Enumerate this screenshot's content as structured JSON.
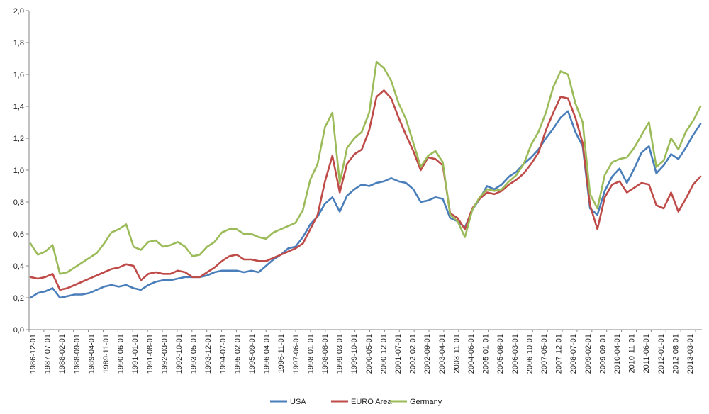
{
  "chart_data": {
    "type": "line",
    "title": "",
    "xlabel": "",
    "ylabel": "",
    "ylim": [
      0,
      2
    ],
    "yticks": [
      "0,0",
      "0,2",
      "0,4",
      "0,6",
      "0,8",
      "1,0",
      "1,2",
      "1,4",
      "1,6",
      "1,8",
      "2,0"
    ],
    "ytick_values": [
      0,
      0.2,
      0.4,
      0.6,
      0.8,
      1.0,
      1.2,
      1.4,
      1.6,
      1.8,
      2.0
    ],
    "xticks": [
      "1986-12-01",
      "1987-07-01",
      "1988-02-01",
      "1988-09-01",
      "1989-04-01",
      "1989-11-01",
      "1990-06-01",
      "1991-01-01",
      "1991-08-01",
      "1992-03-01",
      "1992-10-01",
      "1993-05-01",
      "1993-12-01",
      "1994-07-01",
      "1995-02-01",
      "1995-09-01",
      "1996-04-01",
      "1996-11-01",
      "1997-06-01",
      "1998-01-01",
      "1998-08-01",
      "1999-03-01",
      "1999-10-01",
      "2000-05-01",
      "2000-12-01",
      "2001-07-01",
      "2002-02-01",
      "2002-09-01",
      "2003-04-01",
      "2003-11-01",
      "2004-06-01",
      "2005-01-01",
      "2005-08-01",
      "2006-03-01",
      "2006-10-01",
      "2007-05-01",
      "2007-12-01",
      "2008-07-01",
      "2009-02-01",
      "2009-09-01",
      "2010-04-01",
      "2010-11-01",
      "2011-06-01",
      "2012-01-01",
      "2012-08-01",
      "2013-03-01"
    ],
    "grid": false,
    "legend_position": "bottom",
    "series": [
      {
        "name": "USA",
        "color": "#4a7ebb",
        "values": [
          0.2,
          0.23,
          0.24,
          0.26,
          0.2,
          0.21,
          0.22,
          0.22,
          0.23,
          0.25,
          0.27,
          0.28,
          0.27,
          0.28,
          0.26,
          0.25,
          0.28,
          0.3,
          0.31,
          0.31,
          0.32,
          0.33,
          0.33,
          0.33,
          0.34,
          0.36,
          0.37,
          0.37,
          0.37,
          0.36,
          0.37,
          0.36,
          0.4,
          0.44,
          0.47,
          0.51,
          0.52,
          0.58,
          0.66,
          0.71,
          0.79,
          0.83,
          0.74,
          0.84,
          0.88,
          0.91,
          0.9,
          0.92,
          0.93,
          0.95,
          0.93,
          0.92,
          0.88,
          0.8,
          0.81,
          0.83,
          0.82,
          0.7,
          0.68,
          0.64,
          0.75,
          0.82,
          0.9,
          0.88,
          0.91,
          0.96,
          0.99,
          1.04,
          1.08,
          1.13,
          1.2,
          1.26,
          1.33,
          1.37,
          1.24,
          1.15,
          0.76,
          0.72,
          0.87,
          0.96,
          1.01,
          0.92,
          1.01,
          1.11,
          1.15,
          0.98,
          1.03,
          1.1,
          1.07,
          1.14,
          1.22,
          1.29
        ]
      },
      {
        "name": "EURO Area",
        "color": "#be4b48",
        "values": [
          0.33,
          0.32,
          0.33,
          0.35,
          0.25,
          0.26,
          0.28,
          0.3,
          0.32,
          0.34,
          0.36,
          0.38,
          0.39,
          0.41,
          0.4,
          0.31,
          0.35,
          0.36,
          0.35,
          0.35,
          0.37,
          0.36,
          0.33,
          0.33,
          0.36,
          0.39,
          0.43,
          0.46,
          0.47,
          0.44,
          0.44,
          0.43,
          0.43,
          0.45,
          0.47,
          0.49,
          0.51,
          0.54,
          0.63,
          0.72,
          0.93,
          1.09,
          0.86,
          1.04,
          1.1,
          1.13,
          1.25,
          1.46,
          1.5,
          1.45,
          1.33,
          1.22,
          1.12,
          1.0,
          1.08,
          1.07,
          1.03,
          0.73,
          0.7,
          0.63,
          0.76,
          0.82,
          0.86,
          0.85,
          0.87,
          0.91,
          0.94,
          0.98,
          1.04,
          1.11,
          1.25,
          1.36,
          1.46,
          1.45,
          1.33,
          1.17,
          0.78,
          0.63,
          0.83,
          0.91,
          0.93,
          0.86,
          0.89,
          0.92,
          0.91,
          0.78,
          0.76,
          0.86,
          0.74,
          0.82,
          0.91,
          0.96
        ]
      },
      {
        "name": "Germany",
        "color": "#9bbb59",
        "values": [
          0.54,
          0.47,
          0.49,
          0.53,
          0.35,
          0.36,
          0.39,
          0.42,
          0.45,
          0.48,
          0.54,
          0.61,
          0.63,
          0.66,
          0.52,
          0.5,
          0.55,
          0.56,
          0.52,
          0.53,
          0.55,
          0.52,
          0.46,
          0.47,
          0.52,
          0.55,
          0.61,
          0.63,
          0.63,
          0.6,
          0.6,
          0.58,
          0.57,
          0.61,
          0.63,
          0.65,
          0.67,
          0.75,
          0.94,
          1.04,
          1.27,
          1.36,
          0.92,
          1.14,
          1.2,
          1.24,
          1.36,
          1.68,
          1.64,
          1.56,
          1.42,
          1.32,
          1.17,
          1.02,
          1.09,
          1.12,
          1.05,
          0.72,
          0.68,
          0.58,
          0.75,
          0.83,
          0.88,
          0.87,
          0.88,
          0.93,
          0.97,
          1.04,
          1.16,
          1.24,
          1.36,
          1.52,
          1.62,
          1.6,
          1.42,
          1.3,
          0.85,
          0.76,
          0.97,
          1.05,
          1.07,
          1.08,
          1.14,
          1.22,
          1.3,
          1.02,
          1.06,
          1.2,
          1.13,
          1.24,
          1.31,
          1.4
        ]
      }
    ]
  }
}
